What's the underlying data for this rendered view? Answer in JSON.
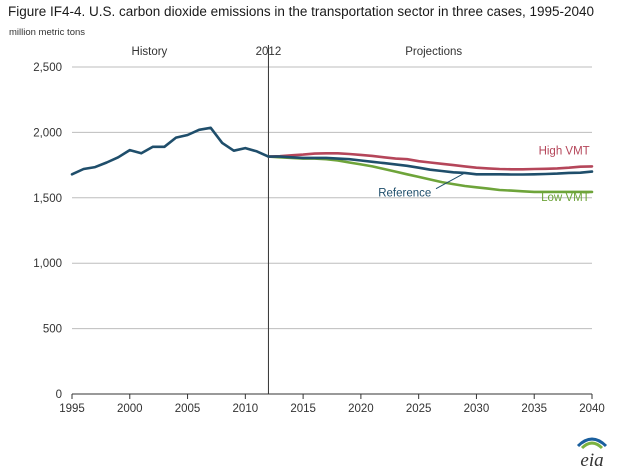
{
  "figure_title": "Figure IF4-4. U.S. carbon dioxide emissions in the transportation sector in three cases, 1995-2040",
  "units_label": "million metric tons",
  "logo_text": "eia",
  "colors": {
    "reference": "#1f4e6b",
    "high_vmt": "#b5465a",
    "low_vmt": "#6ea43a",
    "divider": "#333333",
    "grid": "#bdbdbd",
    "text": "#333333",
    "logo_blue": "#1a5f9e",
    "logo_green": "#7bb241"
  },
  "chart_data": {
    "type": "line",
    "title": "",
    "xlabel": "",
    "ylabel": "million metric tons",
    "xlim": [
      1995,
      2040
    ],
    "ylim": [
      0,
      2500
    ],
    "x_ticks": [
      1995,
      2000,
      2005,
      2010,
      2015,
      2020,
      2025,
      2030,
      2035,
      2040
    ],
    "y_ticks": [
      0,
      500,
      1000,
      1500,
      2000,
      2500
    ],
    "y_tick_labels": [
      "0",
      "500",
      "1,000",
      "1,500",
      "2,000",
      "2,500"
    ],
    "grid": "horizontal",
    "divider_year": 2012,
    "divider_label": "2012",
    "region_labels": [
      "History",
      "Projections"
    ],
    "series": [
      {
        "name": "Reference",
        "color_key": "reference",
        "x": [
          1995,
          1996,
          1997,
          1998,
          1999,
          2000,
          2001,
          2002,
          2003,
          2004,
          2005,
          2006,
          2007,
          2008,
          2009,
          2010,
          2011,
          2012,
          2013,
          2014,
          2015,
          2016,
          2017,
          2018,
          2019,
          2020,
          2021,
          2022,
          2023,
          2024,
          2025,
          2026,
          2027,
          2028,
          2029,
          2030,
          2031,
          2032,
          2033,
          2034,
          2035,
          2036,
          2037,
          2038,
          2039,
          2040
        ],
        "y": [
          1680,
          1720,
          1735,
          1770,
          1810,
          1865,
          1840,
          1890,
          1890,
          1960,
          1980,
          2020,
          2035,
          1920,
          1860,
          1880,
          1855,
          1815,
          1815,
          1810,
          1805,
          1805,
          1805,
          1800,
          1795,
          1785,
          1775,
          1765,
          1755,
          1745,
          1730,
          1715,
          1705,
          1695,
          1690,
          1680,
          1680,
          1680,
          1678,
          1678,
          1680,
          1682,
          1685,
          1690,
          1692,
          1700
        ]
      },
      {
        "name": "High VMT",
        "color_key": "high_vmt",
        "x": [
          2012,
          2013,
          2014,
          2015,
          2016,
          2017,
          2018,
          2019,
          2020,
          2021,
          2022,
          2023,
          2024,
          2025,
          2026,
          2027,
          2028,
          2029,
          2030,
          2031,
          2032,
          2033,
          2034,
          2035,
          2036,
          2037,
          2038,
          2039,
          2040
        ],
        "y": [
          1815,
          1818,
          1825,
          1830,
          1838,
          1840,
          1840,
          1835,
          1828,
          1820,
          1810,
          1800,
          1795,
          1780,
          1770,
          1760,
          1750,
          1740,
          1730,
          1725,
          1720,
          1718,
          1718,
          1720,
          1722,
          1725,
          1730,
          1738,
          1740
        ]
      },
      {
        "name": "Low VMT",
        "color_key": "low_vmt",
        "x": [
          2012,
          2013,
          2014,
          2015,
          2016,
          2017,
          2018,
          2019,
          2020,
          2021,
          2022,
          2023,
          2024,
          2025,
          2026,
          2027,
          2028,
          2029,
          2030,
          2031,
          2032,
          2033,
          2034,
          2035,
          2036,
          2037,
          2038,
          2039,
          2040
        ],
        "y": [
          1815,
          1810,
          1805,
          1800,
          1800,
          1795,
          1785,
          1770,
          1755,
          1740,
          1720,
          1700,
          1680,
          1660,
          1640,
          1620,
          1605,
          1590,
          1580,
          1570,
          1560,
          1555,
          1550,
          1545,
          1545,
          1545,
          1545,
          1545,
          1545
        ]
      }
    ],
    "annotations": [
      {
        "text": "High VMT",
        "series": "High VMT"
      },
      {
        "text": "Reference",
        "series": "Reference"
      },
      {
        "text": "Low VMT",
        "series": "Low VMT"
      }
    ]
  }
}
